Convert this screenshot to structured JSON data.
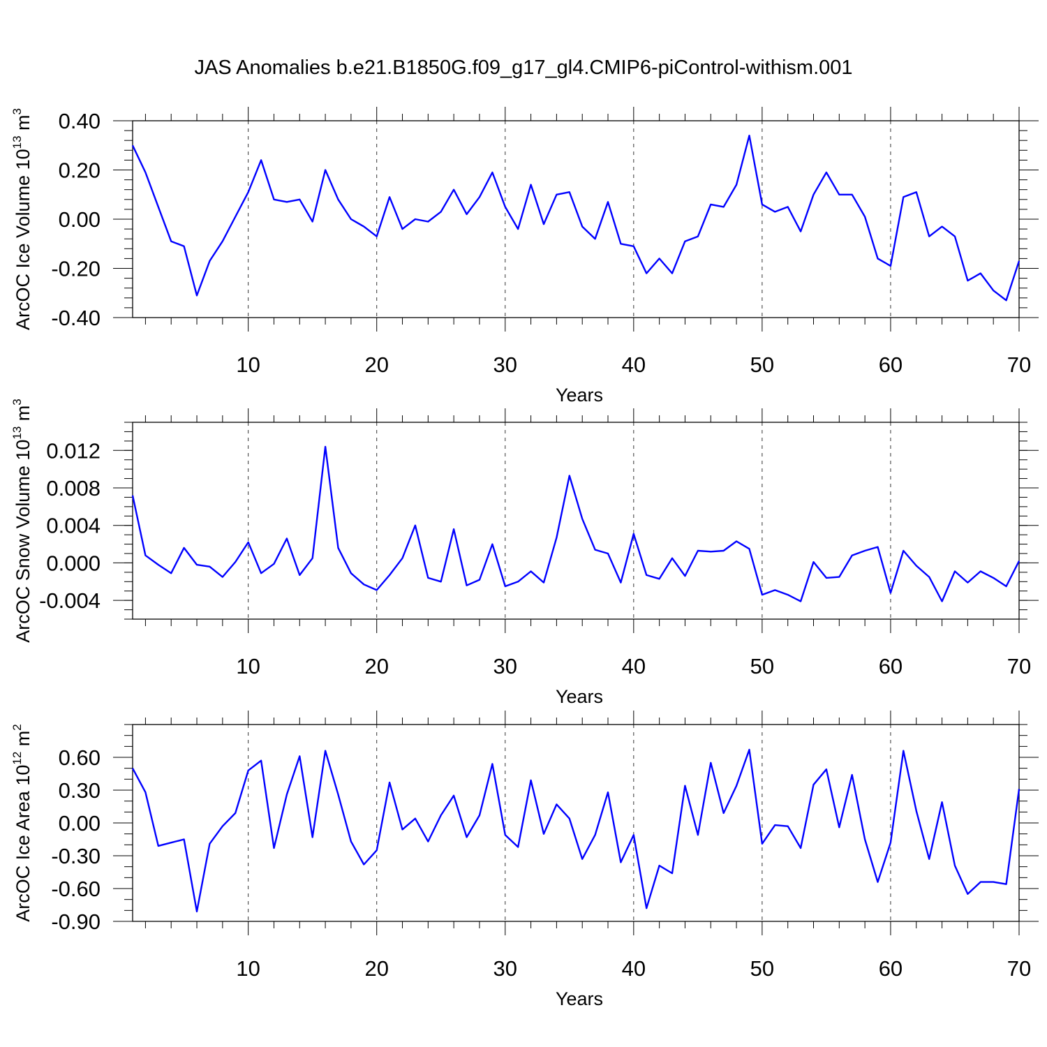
{
  "title": "JAS Anomalies b.e21.B1850G.f09_g17_gl4.CMIP6-piControl-withism.001",
  "colors": {
    "series": "#0000ff",
    "axes": "#000000",
    "grid": "#000000"
  },
  "chart_data": [
    {
      "type": "line",
      "xlabel": "Years",
      "ylabel": {
        "main": "ArcOC Ice Volume 10",
        "exp": "13",
        "unit": " m",
        "unit_exp": "3"
      },
      "xlim": [
        1,
        70
      ],
      "ylim": [
        -0.4,
        0.4
      ],
      "x_ticks": [
        10,
        20,
        30,
        40,
        50,
        60,
        70
      ],
      "x_tick_labels": [
        "10",
        "20",
        "30",
        "40",
        "50",
        "60",
        "70"
      ],
      "y_ticks": [
        -0.4,
        -0.2,
        0.0,
        0.2,
        0.4
      ],
      "y_tick_labels": [
        "-0.40",
        "-0.20",
        "0.00",
        "0.20",
        "0.40"
      ],
      "y_minor_step": 0.04,
      "vertical_grid": "dashed at major x ticks",
      "x": [
        1,
        2,
        3,
        4,
        5,
        6,
        7,
        8,
        9,
        10,
        11,
        12,
        13,
        14,
        15,
        16,
        17,
        18,
        19,
        20,
        21,
        22,
        23,
        24,
        25,
        26,
        27,
        28,
        29,
        30,
        31,
        32,
        33,
        34,
        35,
        36,
        37,
        38,
        39,
        40,
        41,
        42,
        43,
        44,
        45,
        46,
        47,
        48,
        49,
        50,
        51,
        52,
        53,
        54,
        55,
        56,
        57,
        58,
        59,
        60,
        61,
        62,
        63,
        64,
        65,
        66,
        67,
        68,
        69,
        70
      ],
      "values": [
        0.3,
        0.19,
        0.05,
        -0.09,
        -0.11,
        -0.31,
        -0.17,
        -0.09,
        0.01,
        0.11,
        0.24,
        0.08,
        0.07,
        0.08,
        -0.01,
        0.2,
        0.08,
        0.0,
        -0.03,
        -0.07,
        0.09,
        -0.04,
        0.0,
        -0.01,
        0.03,
        0.12,
        0.02,
        0.09,
        0.19,
        0.05,
        -0.04,
        0.14,
        -0.02,
        0.1,
        0.11,
        -0.03,
        -0.08,
        0.07,
        -0.1,
        -0.11,
        -0.22,
        -0.16,
        -0.22,
        -0.09,
        -0.07,
        0.06,
        0.05,
        0.14,
        0.34,
        0.06,
        0.03,
        0.05,
        -0.05,
        0.1,
        0.19,
        0.1,
        0.1,
        0.01,
        -0.16,
        -0.19,
        0.09,
        0.11,
        -0.07,
        -0.03,
        -0.07,
        -0.25,
        -0.22,
        -0.29,
        -0.33,
        -0.17
      ]
    },
    {
      "type": "line",
      "xlabel": "Years",
      "ylabel": {
        "main": "ArcOC Snow Volume 10",
        "exp": "13",
        "unit": " m",
        "unit_exp": "3"
      },
      "xlim": [
        1,
        70
      ],
      "ylim": [
        -0.006,
        0.015
      ],
      "x_ticks": [
        10,
        20,
        30,
        40,
        50,
        60,
        70
      ],
      "x_tick_labels": [
        "10",
        "20",
        "30",
        "40",
        "50",
        "60",
        "70"
      ],
      "y_ticks": [
        -0.004,
        0.0,
        0.004,
        0.008,
        0.012
      ],
      "y_tick_labels": [
        "-0.004",
        "0.000",
        "0.004",
        "0.008",
        "0.012"
      ],
      "y_minor_step": 0.001,
      "vertical_grid": "dashed at major x ticks",
      "x": [
        1,
        2,
        3,
        4,
        5,
        6,
        7,
        8,
        9,
        10,
        11,
        12,
        13,
        14,
        15,
        16,
        17,
        18,
        19,
        20,
        21,
        22,
        23,
        24,
        25,
        26,
        27,
        28,
        29,
        30,
        31,
        32,
        33,
        34,
        35,
        36,
        37,
        38,
        39,
        40,
        41,
        42,
        43,
        44,
        45,
        46,
        47,
        48,
        49,
        50,
        51,
        52,
        53,
        54,
        55,
        56,
        57,
        58,
        59,
        60,
        61,
        62,
        63,
        64,
        65,
        66,
        67,
        68,
        69,
        70
      ],
      "values": [
        0.0072,
        0.0008,
        -0.0002,
        -0.0011,
        0.0016,
        -0.0002,
        -0.0004,
        -0.0015,
        0.0001,
        0.0022,
        -0.0011,
        -0.0001,
        0.0026,
        -0.0013,
        0.0005,
        0.0124,
        0.0016,
        -0.0011,
        -0.0023,
        -0.0029,
        -0.0013,
        0.0005,
        0.004,
        -0.0016,
        -0.002,
        0.0036,
        -0.0024,
        -0.0018,
        0.002,
        -0.0025,
        -0.002,
        -0.0009,
        -0.0021,
        0.0027,
        0.0093,
        0.0047,
        0.0014,
        0.001,
        -0.0021,
        0.0031,
        -0.0013,
        -0.0017,
        0.0005,
        -0.0014,
        0.0013,
        0.0012,
        0.0013,
        0.0023,
        0.0015,
        -0.0034,
        -0.0029,
        -0.0034,
        -0.0041,
        0.0001,
        -0.0016,
        -0.0015,
        0.0008,
        0.0013,
        0.0017,
        -0.0032,
        0.0013,
        -0.0003,
        -0.0015,
        -0.0041,
        -0.0009,
        -0.0021,
        -0.0009,
        -0.0016,
        -0.0025,
        0.0002
      ]
    },
    {
      "type": "line",
      "xlabel": "Years",
      "ylabel": {
        "main": "ArcOC Ice Area 10",
        "exp": "12",
        "unit": " m",
        "unit_exp": "2"
      },
      "xlim": [
        1,
        70
      ],
      "ylim": [
        -0.9,
        0.9
      ],
      "x_ticks": [
        10,
        20,
        30,
        40,
        50,
        60,
        70
      ],
      "x_tick_labels": [
        "10",
        "20",
        "30",
        "40",
        "50",
        "60",
        "70"
      ],
      "y_ticks": [
        -0.9,
        -0.6,
        -0.3,
        0.0,
        0.3,
        0.6
      ],
      "y_tick_labels": [
        "-0.90",
        "-0.60",
        "-0.30",
        "0.00",
        "0.30",
        "0.60"
      ],
      "y_minor_step": 0.1,
      "vertical_grid": "dashed at major x ticks",
      "x": [
        1,
        2,
        3,
        4,
        5,
        6,
        7,
        8,
        9,
        10,
        11,
        12,
        13,
        14,
        15,
        16,
        17,
        18,
        19,
        20,
        21,
        22,
        23,
        24,
        25,
        26,
        27,
        28,
        29,
        30,
        31,
        32,
        33,
        34,
        35,
        36,
        37,
        38,
        39,
        40,
        41,
        42,
        43,
        44,
        45,
        46,
        47,
        48,
        49,
        50,
        51,
        52,
        53,
        54,
        55,
        56,
        57,
        58,
        59,
        60,
        61,
        62,
        63,
        64,
        65,
        66,
        67,
        68,
        69,
        70
      ],
      "values": [
        0.5,
        0.28,
        -0.21,
        -0.18,
        -0.15,
        -0.81,
        -0.19,
        -0.03,
        0.09,
        0.48,
        0.57,
        -0.23,
        0.26,
        0.61,
        -0.13,
        0.66,
        0.26,
        -0.17,
        -0.38,
        -0.25,
        0.37,
        -0.06,
        0.04,
        -0.17,
        0.07,
        0.25,
        -0.13,
        0.07,
        0.54,
        -0.11,
        -0.22,
        0.39,
        -0.1,
        0.17,
        0.04,
        -0.33,
        -0.11,
        0.28,
        -0.36,
        -0.11,
        -0.78,
        -0.39,
        -0.46,
        0.34,
        -0.11,
        0.55,
        0.09,
        0.34,
        0.67,
        -0.19,
        -0.02,
        -0.03,
        -0.23,
        0.35,
        0.49,
        -0.04,
        0.44,
        -0.15,
        -0.54,
        -0.18,
        0.66,
        0.11,
        -0.33,
        0.19,
        -0.39,
        -0.65,
        -0.54,
        -0.54,
        -0.56,
        0.31
      ]
    }
  ]
}
